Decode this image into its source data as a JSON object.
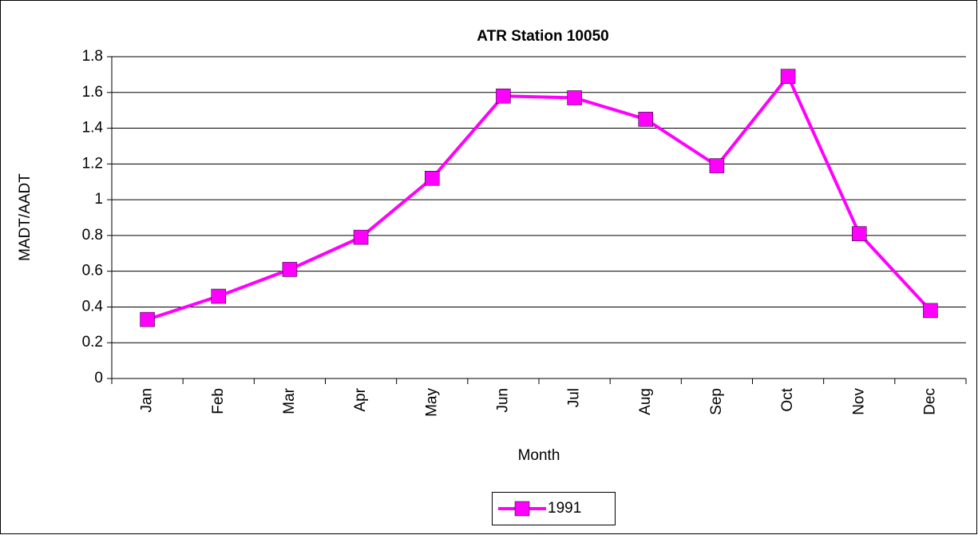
{
  "chart_data": {
    "type": "line",
    "title": "ATR Station 10050",
    "x_label": "Month",
    "y_label": "MADT/AADT",
    "categories": [
      "Jan",
      "Feb",
      "Mar",
      "Apr",
      "May",
      "Jun",
      "Jul",
      "Aug",
      "Sep",
      "Oct",
      "Nov",
      "Dec"
    ],
    "series": [
      {
        "name": "1991",
        "color": "#ff00ff",
        "values": [
          0.33,
          0.46,
          0.61,
          0.79,
          1.12,
          1.58,
          1.57,
          1.45,
          1.19,
          1.69,
          0.81,
          0.38
        ]
      }
    ],
    "ylim": [
      0,
      1.8
    ],
    "yticks": [
      0,
      0.2,
      0.4,
      0.6,
      0.8,
      1,
      1.2,
      1.4,
      1.6,
      1.8
    ],
    "grid": true,
    "legend": "bottom"
  }
}
